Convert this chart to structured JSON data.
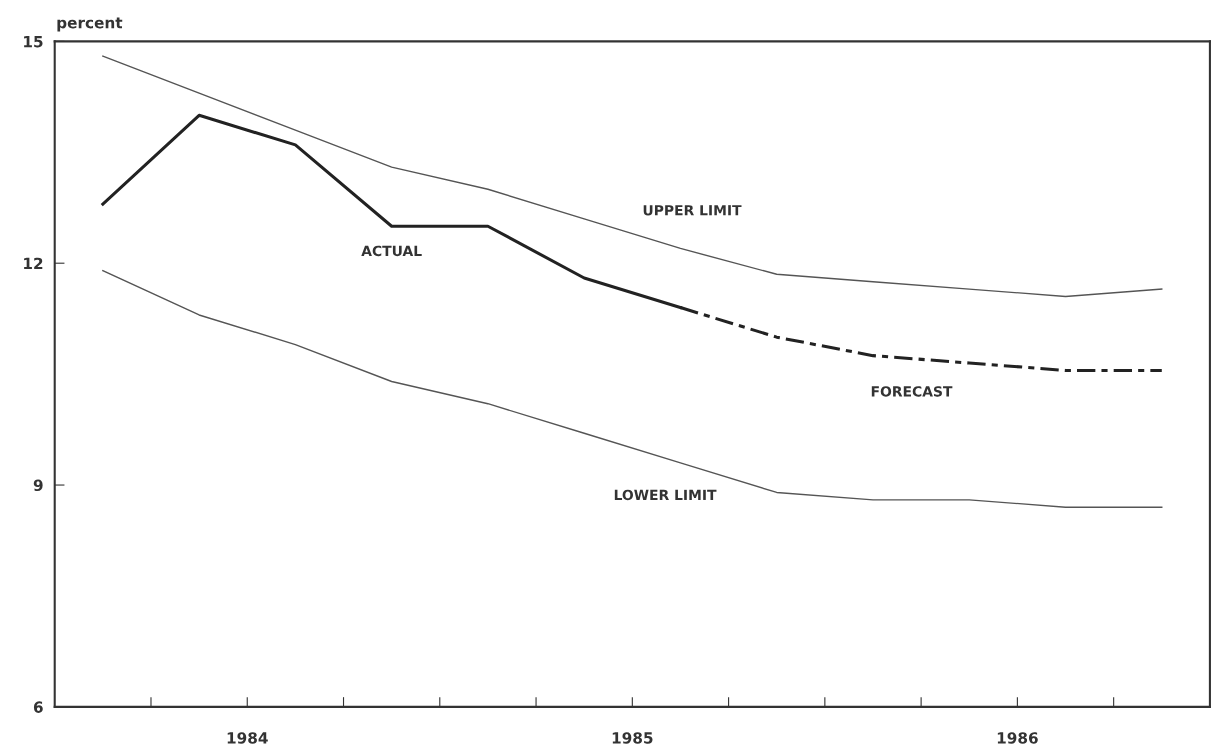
{
  "chart_data": {
    "type": "line",
    "ylabel": "percent",
    "xlim": [
      1984,
      1987
    ],
    "ylim": [
      6,
      15
    ],
    "yticks": [
      6,
      9,
      12,
      15
    ],
    "xticks": [
      {
        "value": 1984.25,
        "label": null
      },
      {
        "value": 1984.5,
        "label": "1984"
      },
      {
        "value": 1984.75,
        "label": null
      },
      {
        "value": 1985,
        "label": null
      },
      {
        "value": 1985.25,
        "label": null
      },
      {
        "value": 1985.5,
        "label": "1985"
      },
      {
        "value": 1985.75,
        "label": null
      },
      {
        "value": 1986,
        "label": null
      },
      {
        "value": 1986.25,
        "label": null
      },
      {
        "value": 1986.5,
        "label": "1986"
      },
      {
        "value": 1986.75,
        "label": null
      }
    ],
    "grid": false,
    "legend": false,
    "series": [
      {
        "name": "UPPER LIMIT",
        "color": "#555555",
        "line_style": "solid",
        "x": [
          1984.125,
          1984.375,
          1984.625,
          1984.875,
          1985.125,
          1985.375,
          1985.625,
          1985.875,
          1986.125,
          1986.375,
          1986.625,
          1986.875
        ],
        "values": [
          14.8,
          14.3,
          13.8,
          13.3,
          13.0,
          12.6,
          12.2,
          11.85,
          11.75,
          11.65,
          11.55,
          11.65
        ]
      },
      {
        "name": "ACTUAL",
        "color": "#222222",
        "line_style": "solid",
        "x": [
          1984.125,
          1984.375,
          1984.625,
          1984.875,
          1985.125,
          1985.375,
          1985.625
        ],
        "values": [
          12.8,
          14.0,
          13.6,
          12.5,
          12.5,
          11.8,
          11.4
        ]
      },
      {
        "name": "FORECAST",
        "color": "#222222",
        "line_style": "dashed",
        "x": [
          1985.625,
          1985.875,
          1986.125,
          1986.375,
          1986.625,
          1986.875
        ],
        "values": [
          11.4,
          11.0,
          10.75,
          10.65,
          10.55,
          10.55
        ]
      },
      {
        "name": "LOWER LIMIT",
        "color": "#555555",
        "line_style": "solid",
        "x": [
          1984.125,
          1984.375,
          1984.625,
          1984.875,
          1985.125,
          1985.375,
          1985.625,
          1985.875,
          1986.125,
          1986.375,
          1986.625,
          1986.875
        ],
        "values": [
          11.9,
          11.3,
          10.9,
          10.4,
          10.1,
          9.7,
          9.3,
          8.9,
          8.8,
          8.8,
          8.7,
          8.7
        ]
      }
    ]
  }
}
